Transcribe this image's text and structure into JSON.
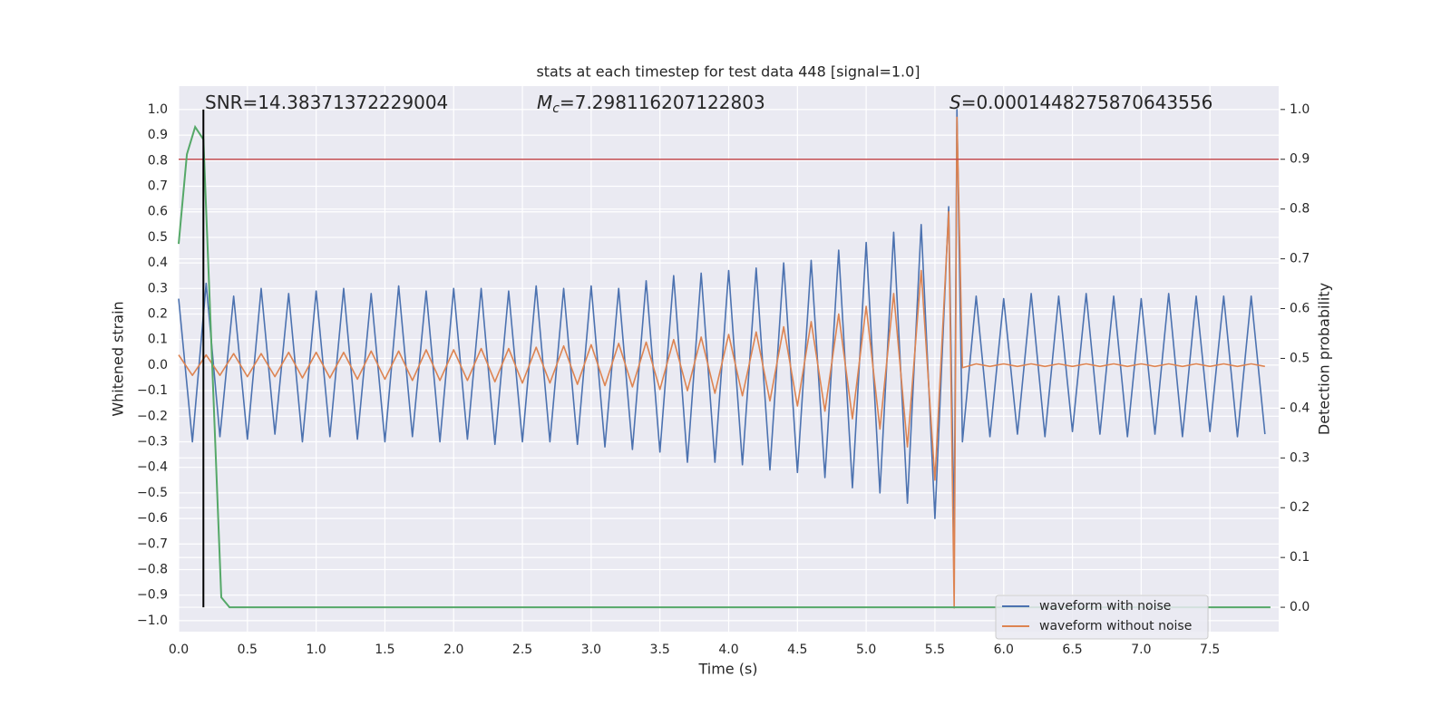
{
  "chart_data": {
    "type": "line",
    "title": "stats at each timestep for test data 448 [signal=1.0]",
    "x_label": "Time (s)",
    "y_label": "Whitened strain",
    "y2_label": "Detection probability",
    "xlim": [
      0,
      8.0
    ],
    "ylim": [
      -1.043,
      1.092
    ],
    "y2lim": [
      -0.049,
      1.047
    ],
    "grid": true,
    "legend": "lower right",
    "xticks": [
      {
        "value": 0,
        "label": "0.0"
      },
      0.5,
      {
        "value": 1,
        "label": "1.0"
      },
      1.5,
      {
        "value": 2,
        "label": "2.0"
      },
      2.5,
      {
        "value": 3,
        "label": "3.0"
      },
      3.5,
      {
        "value": 4,
        "label": "4.0"
      },
      4.5,
      {
        "value": 5,
        "label": "5.0"
      },
      5.5,
      {
        "value": 6,
        "label": "6.0"
      },
      6.5,
      {
        "value": 7,
        "label": "7.0"
      },
      7.5
    ],
    "yticks": [
      {
        "value": -1,
        "label": "−1.0"
      },
      {
        "value": -0.9,
        "label": "−0.9"
      },
      {
        "value": -0.8,
        "label": "−0.8"
      },
      {
        "value": -0.7,
        "label": "−0.7"
      },
      {
        "value": -0.6,
        "label": "−0.6"
      },
      {
        "value": -0.5,
        "label": "−0.5"
      },
      {
        "value": -0.4,
        "label": "−0.4"
      },
      {
        "value": -0.3,
        "label": "−0.3"
      },
      {
        "value": -0.2,
        "label": "−0.2"
      },
      {
        "value": -0.1,
        "label": "−0.1"
      },
      {
        "value": 0,
        "label": "0.0"
      },
      0.1,
      0.2,
      0.3,
      0.4,
      0.5,
      0.6,
      0.7,
      0.8,
      0.9,
      {
        "value": 1,
        "label": "1.0"
      }
    ],
    "y2ticks": [
      {
        "value": 0,
        "label": "0.0"
      },
      0.1,
      0.2,
      0.3,
      0.4,
      0.5,
      0.6,
      0.7,
      0.8,
      0.9,
      {
        "value": 1,
        "label": "1.0"
      }
    ],
    "x": [
      0.0,
      0.1,
      0.2,
      0.3,
      0.4,
      0.5,
      0.6,
      0.7,
      0.8,
      0.9,
      1.0,
      1.1,
      1.2,
      1.3,
      1.4,
      1.5,
      1.6,
      1.7,
      1.8,
      1.9,
      2.0,
      2.1,
      2.2,
      2.3,
      2.4,
      2.5,
      2.6,
      2.7,
      2.8,
      2.9,
      3.0,
      3.1,
      3.2,
      3.3,
      3.4,
      3.5,
      3.6,
      3.7,
      3.8,
      3.9,
      4.0,
      4.1,
      4.2,
      4.3,
      4.4,
      4.5,
      4.6,
      4.7,
      4.8,
      4.9,
      5.0,
      5.1,
      5.2,
      5.3,
      5.4,
      5.5,
      5.6,
      5.64,
      5.66,
      5.7,
      5.8,
      5.9,
      6.0,
      6.1,
      6.2,
      6.3,
      6.4,
      6.5,
      6.6,
      6.7,
      6.8,
      6.9,
      7.0,
      7.1,
      7.2,
      7.3,
      7.4,
      7.5,
      7.6,
      7.7,
      7.8,
      7.9
    ],
    "series": [
      {
        "name": "waveform with noise",
        "color": "#4c72b0",
        "values": [
          0.26,
          -0.3,
          0.32,
          -0.28,
          0.27,
          -0.29,
          0.3,
          -0.27,
          0.28,
          -0.3,
          0.29,
          -0.28,
          0.3,
          -0.29,
          0.28,
          -0.3,
          0.31,
          -0.28,
          0.29,
          -0.3,
          0.3,
          -0.29,
          0.3,
          -0.31,
          0.29,
          -0.3,
          0.31,
          -0.3,
          0.3,
          -0.31,
          0.31,
          -0.32,
          0.3,
          -0.33,
          0.33,
          -0.34,
          0.35,
          -0.38,
          0.36,
          -0.38,
          0.37,
          -0.39,
          0.38,
          -0.41,
          0.4,
          -0.42,
          0.41,
          -0.44,
          0.45,
          -0.48,
          0.48,
          -0.5,
          0.52,
          -0.54,
          0.55,
          -0.6,
          0.62,
          -0.68,
          1.0,
          -0.3,
          0.27,
          -0.28,
          0.26,
          -0.27,
          0.28,
          -0.28,
          0.27,
          -0.26,
          0.28,
          -0.27,
          0.27,
          -0.28,
          0.26,
          -0.27,
          0.28,
          -0.28,
          0.27,
          -0.26,
          0.27,
          -0.28,
          0.27,
          -0.27
        ]
      },
      {
        "name": "waveform without noise",
        "color": "#dd8452",
        "values": [
          0.04,
          -0.04,
          0.04,
          -0.04,
          0.045,
          -0.045,
          0.045,
          -0.045,
          0.05,
          -0.05,
          0.05,
          -0.05,
          0.05,
          -0.055,
          0.055,
          -0.055,
          0.055,
          -0.06,
          0.06,
          -0.06,
          0.06,
          -0.06,
          0.065,
          -0.065,
          0.065,
          -0.07,
          0.07,
          -0.07,
          0.075,
          -0.075,
          0.08,
          -0.08,
          0.085,
          -0.085,
          0.09,
          -0.095,
          0.1,
          -0.1,
          0.11,
          -0.11,
          0.12,
          -0.12,
          0.13,
          -0.14,
          0.15,
          -0.16,
          0.17,
          -0.18,
          0.2,
          -0.21,
          0.23,
          -0.25,
          0.28,
          -0.32,
          0.37,
          -0.45,
          0.6,
          -0.95,
          0.97,
          -0.01,
          0.005,
          -0.005,
          0.005,
          -0.005,
          0.005,
          -0.005,
          0.005,
          -0.005,
          0.005,
          -0.005,
          0.005,
          -0.005,
          0.005,
          -0.005,
          0.005,
          -0.005,
          0.005,
          -0.005,
          0.005,
          -0.005,
          0.005,
          -0.005
        ]
      }
    ],
    "probability": {
      "axis": "y2",
      "color": "#55a868",
      "x": [
        0,
        0.06,
        0.12,
        0.18,
        0.31,
        0.37,
        7.94
      ],
      "values": [
        0.73,
        0.91,
        0.965,
        0.94,
        0.02,
        0.0,
        0.0
      ]
    },
    "threshold": {
      "axis": "y2",
      "value": 0.9,
      "color": "#c44e52"
    },
    "marker_time": {
      "x": 0.18,
      "color": "#000000"
    },
    "annotations": [
      {
        "text": "SNR=14.38371372229004"
      },
      {
        "symbol": "M",
        "subscript": "c",
        "text": "=7.298116207122803"
      },
      {
        "symbol": "S",
        "text": "=0.0001448275870643556"
      }
    ]
  }
}
